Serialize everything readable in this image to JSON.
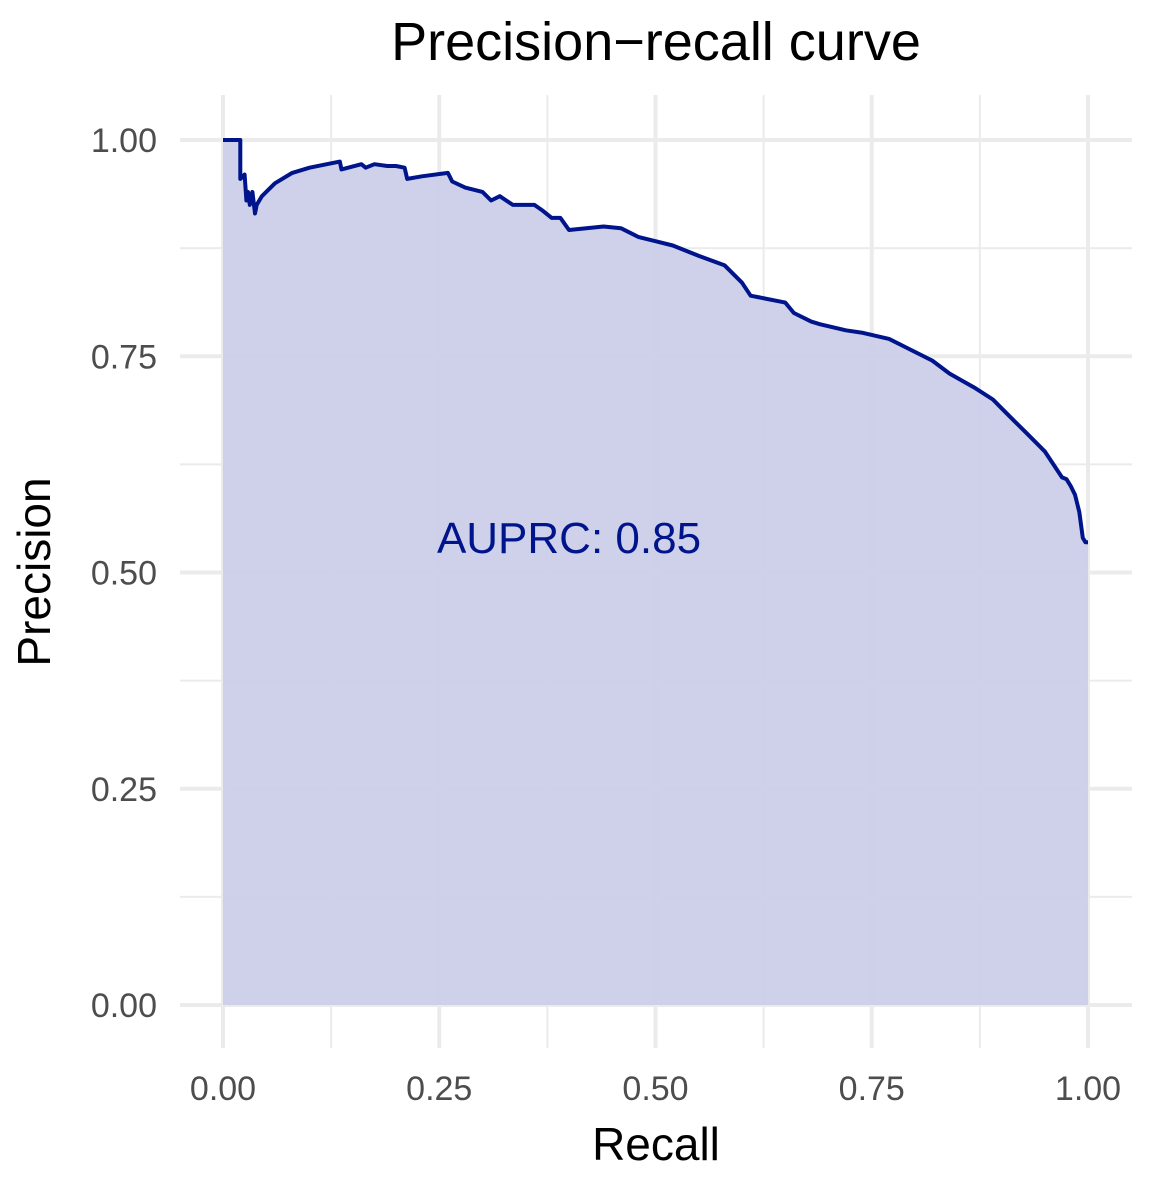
{
  "chart_data": {
    "type": "area",
    "title": "Precision−recall curve",
    "xlabel": "Recall",
    "ylabel": "Precision",
    "xlim": [
      0,
      1
    ],
    "ylim": [
      0,
      1
    ],
    "x_major_ticks": [
      0,
      0.25,
      0.5,
      0.75,
      1
    ],
    "x_tick_labels": [
      "0.00",
      "0.25",
      "0.50",
      "0.75",
      "1.00"
    ],
    "x_minor_ticks": [
      0.125,
      0.375,
      0.625,
      0.875
    ],
    "y_major_ticks": [
      0,
      0.25,
      0.5,
      0.75,
      1
    ],
    "y_tick_labels": [
      "0.00",
      "0.25",
      "0.50",
      "0.75",
      "1.00"
    ],
    "y_minor_ticks": [
      0.125,
      0.375,
      0.625,
      0.875
    ],
    "grid": true,
    "annotation": {
      "text": "AUPRC: 0.85",
      "x": 0.4,
      "y": 0.54
    },
    "colors": {
      "line": "#00148C",
      "fill": "#CCCFEA",
      "annotation": "#00148C"
    },
    "series": [
      {
        "x": [
          0,
          0.02,
          0.02,
          0.025,
          0.027,
          0.029,
          0.031,
          0.034,
          0.037,
          0.039,
          0.045,
          0.06,
          0.08,
          0.1,
          0.12,
          0.135,
          0.137,
          0.16,
          0.165,
          0.175,
          0.19,
          0.2,
          0.21,
          0.213,
          0.23,
          0.26,
          0.265,
          0.28,
          0.3,
          0.31,
          0.32,
          0.335,
          0.36,
          0.37,
          0.38,
          0.39,
          0.4,
          0.42,
          0.44,
          0.46,
          0.48,
          0.5,
          0.52,
          0.55,
          0.58,
          0.6,
          0.61,
          0.62,
          0.65,
          0.66,
          0.68,
          0.69,
          0.72,
          0.74,
          0.77,
          0.79,
          0.82,
          0.84,
          0.87,
          0.89,
          0.9,
          0.91,
          0.93,
          0.95,
          0.96,
          0.97,
          0.975,
          0.98,
          0.985,
          0.99,
          0.994,
          0.997,
          1.0
        ],
        "y": [
          1.0,
          1.0,
          0.955,
          0.96,
          0.93,
          0.94,
          0.925,
          0.94,
          0.915,
          0.925,
          0.935,
          0.95,
          0.962,
          0.968,
          0.972,
          0.975,
          0.966,
          0.972,
          0.968,
          0.972,
          0.97,
          0.97,
          0.968,
          0.955,
          0.958,
          0.962,
          0.952,
          0.945,
          0.94,
          0.93,
          0.935,
          0.925,
          0.925,
          0.918,
          0.91,
          0.91,
          0.896,
          0.898,
          0.9,
          0.898,
          0.888,
          0.883,
          0.878,
          0.866,
          0.855,
          0.835,
          0.82,
          0.818,
          0.812,
          0.8,
          0.79,
          0.787,
          0.78,
          0.777,
          0.77,
          0.76,
          0.745,
          0.73,
          0.713,
          0.7,
          0.69,
          0.68,
          0.66,
          0.64,
          0.625,
          0.61,
          0.608,
          0.6,
          0.59,
          0.57,
          0.54,
          0.535,
          0.535
        ]
      }
    ]
  }
}
